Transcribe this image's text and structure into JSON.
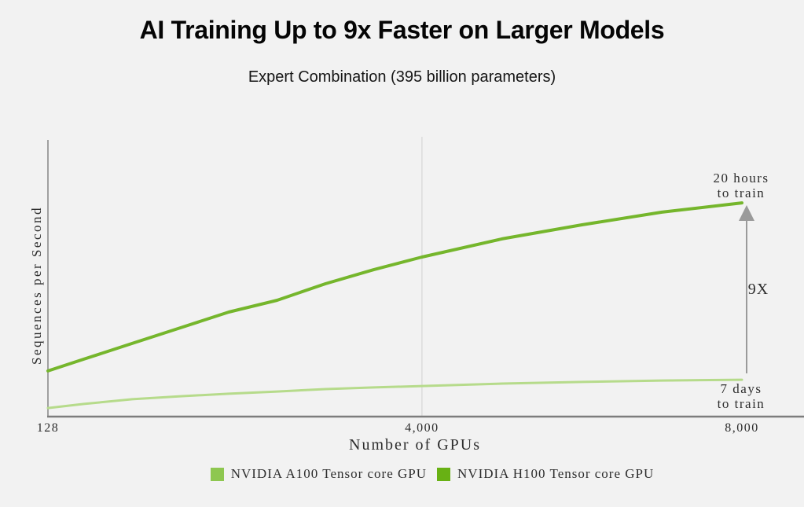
{
  "header": {
    "title": "AI Training Up to 9x Faster on Larger Models",
    "subtitle": "Expert Combination (395 billion parameters)"
  },
  "chart_data": {
    "type": "line",
    "title": "AI Training Up to 9x Faster on Larger Models",
    "subtitle": "Expert Combination (395 billion parameters)",
    "xlabel": "Number of GPUs",
    "ylabel": "Sequences per Second",
    "y_units": "relative (y-axis has no numeric ticks)",
    "ylim": [
      0,
      100
    ],
    "x_tick_labels": [
      "128",
      "4,000",
      "8,000"
    ],
    "x_tick_values": [
      128,
      4000,
      8000
    ],
    "x_gridline_value": 4000,
    "x_anchors": [
      {
        "value": 128,
        "frac": 0
      },
      {
        "value": 4000,
        "frac": 0.539
      },
      {
        "value": 8000,
        "frac": 1
      }
    ],
    "x": [
      128,
      500,
      1000,
      1500,
      2000,
      2500,
      3000,
      3500,
      4000,
      5000,
      6000,
      7000,
      8000
    ],
    "series": [
      {
        "name": "NVIDIA A100 Tensor core GPU",
        "swatch_color": "#8ec750",
        "line_color": "#b6db8b",
        "line_width": 3,
        "values": [
          3.1,
          4.6,
          6.3,
          7.4,
          8.3,
          9.1,
          10.0,
          10.6,
          11.1,
          12.0,
          12.6,
          13.1,
          13.4
        ]
      },
      {
        "name": "NVIDIA H100 Tensor core GPU",
        "swatch_color": "#68b114",
        "line_color": "#75b62c",
        "line_width": 4,
        "values": [
          16.6,
          20.9,
          26.6,
          32.3,
          38.0,
          42.3,
          48.3,
          53.4,
          58.0,
          64.6,
          69.7,
          74.3,
          77.7
        ]
      }
    ],
    "annotations": {
      "h100_end": [
        "20 hours",
        "to train"
      ],
      "speedup": "9X",
      "a100_end": [
        "7 days",
        "to train"
      ]
    },
    "legend_position": "bottom",
    "grid": "single vertical gridline at x=4000"
  },
  "colors": {
    "background": "#f2f2f2",
    "axis": "#a0a0a0",
    "x_axis": "#7d7d7d",
    "gridline": "#d8d8d8",
    "arrow": "#9a9a9a",
    "text": "#2d2d2d"
  }
}
